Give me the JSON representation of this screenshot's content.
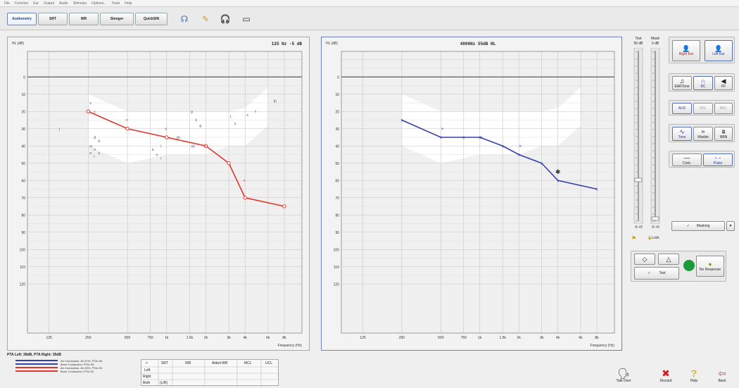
{
  "menu": [
    "File",
    "Function",
    "Ear",
    "Output",
    "Audio",
    "Stimulus",
    "Options...",
    "Tools",
    "Help"
  ],
  "toolbar": {
    "tabs": [
      "Audiometry",
      "SRT",
      "WR",
      "Stenger",
      "QuickSIN"
    ],
    "icons": [
      "headset-icon",
      "note-icon",
      "headphones-icon",
      "battery-icon"
    ],
    "icon_glyphs": [
      "☊",
      "✎",
      "🎧",
      "▭"
    ]
  },
  "left_chart": {
    "y_title": "HL (dB)",
    "x_title": "Frequency (Hz)",
    "status": "125 Hz -5 dB",
    "color": "#e0352c",
    "y_ticks": [
      "0",
      "10",
      "20",
      "30",
      "40",
      "50",
      "60",
      "70",
      "80",
      "90",
      "100",
      "110",
      "120"
    ],
    "x_ticks": [
      "125",
      "250",
      "500",
      "750",
      "1k",
      "1.5k",
      "2k",
      "3k",
      "4k",
      "6k",
      "8k"
    ],
    "points": [
      {
        "f": "250",
        "db": 20
      },
      {
        "f": "500",
        "db": 30
      },
      {
        "f": "1k",
        "db": 35
      },
      {
        "f": "2k",
        "db": 40
      },
      {
        "f": "3k",
        "db": 50
      },
      {
        "f": "4k",
        "db": 70
      },
      {
        "f": "8k",
        "db": 75
      }
    ],
    "bone_marks": [
      {
        "f": "500",
        "db": 25
      },
      {
        "f": "1k",
        "db": 30
      },
      {
        "f": "2k",
        "db": 40
      },
      {
        "f": "4k",
        "db": 60
      }
    ],
    "speech_labels": [
      {
        "t": "v",
        "f": "250",
        "db": 15
      },
      {
        "t": "z",
        "f": "250",
        "db": 20
      },
      {
        "t": "j",
        "f": "125",
        "db": 30
      },
      {
        "t": "p",
        "f": "1.5k",
        "db": 20
      },
      {
        "t": "h",
        "f": "1.5k",
        "db": 25
      },
      {
        "t": "g",
        "f": "1.5k",
        "db": 28
      },
      {
        "t": "t",
        "f": "3k",
        "db": 23
      },
      {
        "t": "k",
        "f": "3k",
        "db": 27
      },
      {
        "t": "f",
        "f": "4k",
        "db": 20
      },
      {
        "t": "s",
        "f": "4k",
        "db": 22
      },
      {
        "t": "th",
        "f": "6k",
        "db": 14
      },
      {
        "t": "ch",
        "f": "1k",
        "db": 35
      },
      {
        "t": "sh",
        "f": "1.5k",
        "db": 40
      },
      {
        "t": "d",
        "f": "250",
        "db": 35
      },
      {
        "t": "b",
        "f": "250",
        "db": 37
      },
      {
        "t": "m",
        "f": "250",
        "db": 40
      },
      {
        "t": "n",
        "f": "250",
        "db": 42
      },
      {
        "t": "u",
        "f": "250",
        "db": 44
      },
      {
        "t": "e",
        "f": "250",
        "db": 44
      },
      {
        "t": "l",
        "f": "250",
        "db": 46
      },
      {
        "t": "i",
        "f": "750",
        "db": 40
      },
      {
        "t": "a",
        "f": "750",
        "db": 42
      },
      {
        "t": "o",
        "f": "750",
        "db": 45
      },
      {
        "t": "r",
        "f": "750",
        "db": 47
      }
    ]
  },
  "right_chart": {
    "y_title": "HL (dB)",
    "x_title": "Frequency (Hz)",
    "status": "4000Hz  55dB HL",
    "color": "#3840a8",
    "y_ticks": [
      "0",
      "10",
      "20",
      "30",
      "40",
      "50",
      "60",
      "70",
      "80",
      "90",
      "100",
      "110",
      "120"
    ],
    "x_ticks": [
      "125",
      "250",
      "500",
      "750",
      "1k",
      "1.5k",
      "2k",
      "3k",
      "4k",
      "6k",
      "8k"
    ],
    "points": [
      {
        "f": "250",
        "db": 25
      },
      {
        "f": "500",
        "db": 35
      },
      {
        "f": "750",
        "db": 35
      },
      {
        "f": "1k",
        "db": 35
      },
      {
        "f": "1.5k",
        "db": 40
      },
      {
        "f": "2k",
        "db": 45
      },
      {
        "f": "3k",
        "db": 50
      },
      {
        "f": "4k",
        "db": 60
      },
      {
        "f": "8k",
        "db": 65
      }
    ],
    "bone_marks": [
      {
        "f": "500",
        "db": 30
      },
      {
        "f": "1k",
        "db": 35
      },
      {
        "f": "2k",
        "db": 40
      }
    ],
    "current": {
      "f": "4k",
      "db": 55
    }
  },
  "test_slider": {
    "label": "Test",
    "value": "55 dB",
    "bottom": "-5 +5",
    "level": 55
  },
  "mask_slider": {
    "label": "Mask",
    "value": "0 dB",
    "bottom": "-5 +5",
    "level": 0
  },
  "lock_label": "Lock",
  "right_panel": {
    "ears": [
      "Right Ear",
      "Left Ear"
    ],
    "transducers": [
      "EARTone",
      "BC",
      "FF"
    ],
    "modes": [
      "AUD",
      "UCL",
      "MCL"
    ],
    "stimuli": [
      "Tone",
      "Warble",
      "NBN"
    ],
    "presentation": [
      "Cont.",
      "Pulse"
    ],
    "masking": "Masking",
    "test": "Test",
    "no_response": "No Response",
    "response_color": "#1a9a3a"
  },
  "pta": {
    "title": "PTA Left: 38dB, PTA Right: 35dB",
    "legend": [
      {
        "label": "Air Conduction, AI=37%, PTA=38",
        "color": "#3840a8"
      },
      {
        "label": "Bone Conduction, PTA=35",
        "color": "#3840a8"
      },
      {
        "label": "Air Conduction, AI=30%, PTA=35",
        "color": "#e0352c"
      },
      {
        "label": "Bone Conduction, PTA=32",
        "color": "#e0352c"
      }
    ]
  },
  "speech_table": {
    "headers": [
      ">",
      "SRT",
      "WR",
      "Aided WR",
      "MCL",
      "UCL"
    ],
    "rows": [
      "Left",
      "Right",
      "Both"
    ],
    "both_extra": "(L/R)"
  },
  "bottom_actions": [
    {
      "label": "Talk Over",
      "icon": "talk-over-icon",
      "glyph": "🗣"
    },
    {
      "label": "Discard",
      "icon": "discard-icon",
      "glyph": "✖"
    },
    {
      "label": "Help",
      "icon": "help-icon",
      "glyph": "?"
    },
    {
      "label": "Back",
      "icon": "back-icon",
      "glyph": "⇦"
    }
  ]
}
